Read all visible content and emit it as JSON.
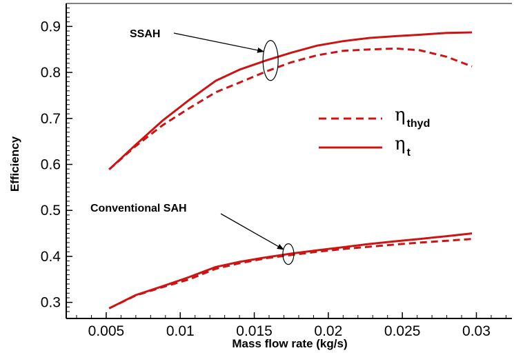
{
  "chart_data": {
    "type": "line",
    "xlabel": "Mass flow rate (kg/s)",
    "ylabel": "Efficiency",
    "xlim": [
      0.0023,
      0.0324
    ],
    "ylim": [
      0.265,
      0.95
    ],
    "xticks": [
      {
        "value": 0.005,
        "label": "0.005"
      },
      {
        "value": 0.01,
        "label": "0.01"
      },
      {
        "value": 0.015,
        "label": "0.015"
      },
      {
        "value": 0.02,
        "label": "0.02"
      },
      {
        "value": 0.025,
        "label": "0.025"
      },
      {
        "value": 0.03,
        "label": "0.03"
      }
    ],
    "yticks": [
      {
        "value": 0.3,
        "label": "0.3"
      },
      {
        "value": 0.4,
        "label": "0.4"
      },
      {
        "value": 0.5,
        "label": "0.5"
      },
      {
        "value": 0.6,
        "label": "0.6"
      },
      {
        "value": 0.7,
        "label": "0.7"
      },
      {
        "value": 0.8,
        "label": "0.8"
      },
      {
        "value": 0.9,
        "label": "0.9"
      }
    ],
    "series": [
      {
        "group": "SSAH",
        "legend": "thyd",
        "style": "dashed",
        "color": "#cc1414",
        "x": [
          0.0052,
          0.007,
          0.0088,
          0.0106,
          0.0124,
          0.014,
          0.0158,
          0.0175,
          0.0192,
          0.021,
          0.0228,
          0.0246,
          0.0262,
          0.028,
          0.0297
        ],
        "y": [
          0.589,
          0.64,
          0.685,
          0.722,
          0.757,
          0.778,
          0.802,
          0.822,
          0.837,
          0.847,
          0.85,
          0.852,
          0.848,
          0.834,
          0.813
        ]
      },
      {
        "group": "SSAH",
        "legend": "t",
        "style": "solid",
        "color": "#cc1414",
        "x": [
          0.0052,
          0.007,
          0.0088,
          0.0106,
          0.0124,
          0.014,
          0.0158,
          0.0175,
          0.0192,
          0.021,
          0.0228,
          0.0246,
          0.0262,
          0.028,
          0.0297
        ],
        "y": [
          0.589,
          0.643,
          0.695,
          0.74,
          0.782,
          0.806,
          0.826,
          0.843,
          0.858,
          0.868,
          0.875,
          0.879,
          0.882,
          0.886,
          0.887
        ]
      },
      {
        "group": "Conventional SAH",
        "legend": "thyd",
        "style": "dashed",
        "color": "#cc1414",
        "x": [
          0.0052,
          0.007,
          0.0088,
          0.0106,
          0.0124,
          0.014,
          0.0158,
          0.0175,
          0.0192,
          0.021,
          0.0228,
          0.0246,
          0.0262,
          0.028,
          0.0297
        ],
        "y": [
          0.287,
          0.315,
          0.333,
          0.35,
          0.373,
          0.385,
          0.396,
          0.403,
          0.41,
          0.416,
          0.421,
          0.426,
          0.43,
          0.434,
          0.438
        ]
      },
      {
        "group": "Conventional SAH",
        "legend": "t",
        "style": "solid",
        "color": "#cc1414",
        "x": [
          0.0052,
          0.007,
          0.0088,
          0.0106,
          0.0124,
          0.014,
          0.0158,
          0.0175,
          0.0192,
          0.021,
          0.0228,
          0.0246,
          0.0262,
          0.028,
          0.0297
        ],
        "y": [
          0.287,
          0.316,
          0.335,
          0.355,
          0.377,
          0.388,
          0.398,
          0.406,
          0.413,
          0.42,
          0.427,
          0.433,
          0.438,
          0.444,
          0.45
        ]
      }
    ],
    "legend": [
      {
        "symbol": "η",
        "sub": "thyd",
        "style": "dashed"
      },
      {
        "symbol": "η",
        "sub": "t",
        "style": "solid"
      }
    ],
    "annotations": [
      {
        "text": "SSAH",
        "target_x": 0.0161,
        "target_y": 0.826
      },
      {
        "text": "Conventional SAH",
        "target_x": 0.0173,
        "target_y": 0.405
      }
    ],
    "grid": false,
    "legend_position": "center-right"
  }
}
